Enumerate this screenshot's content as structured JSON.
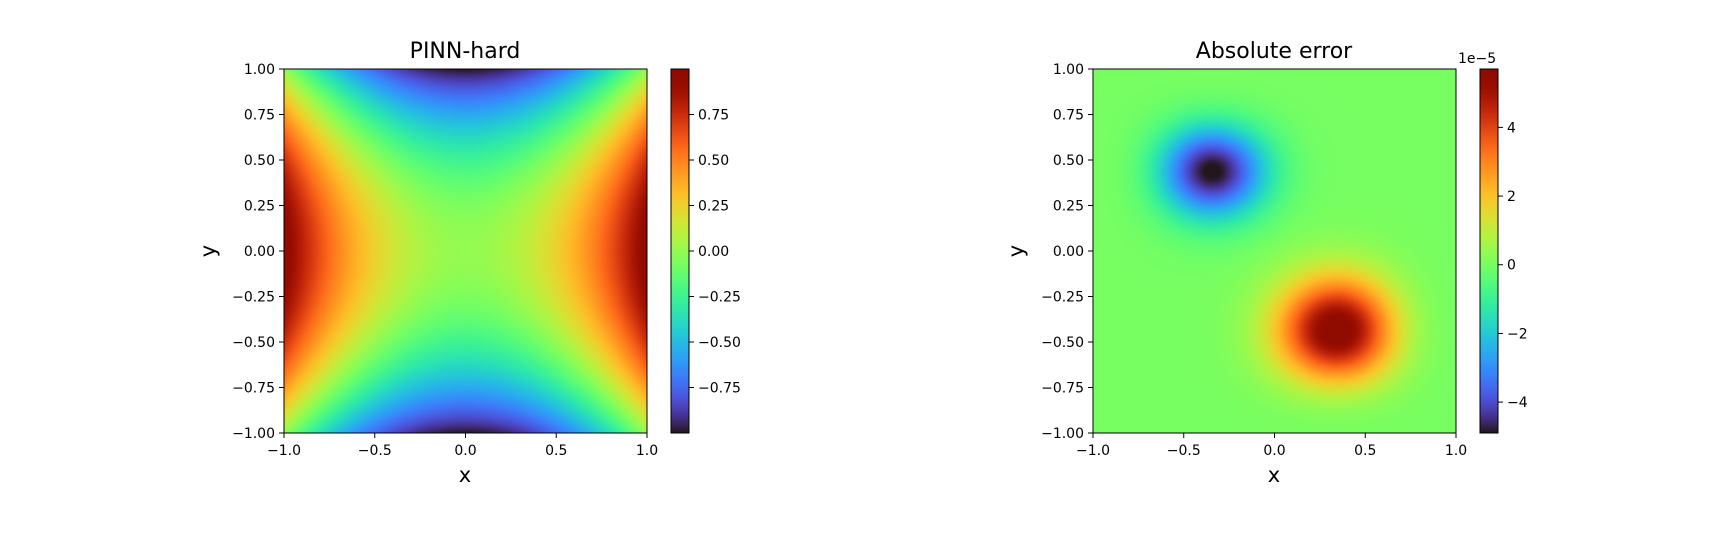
{
  "chart_data": [
    {
      "type": "heatmap",
      "title": "PINN-hard",
      "xlabel": "x",
      "ylabel": "y",
      "xlim": [
        -1.0,
        1.0
      ],
      "ylim": [
        -1.0,
        1.0
      ],
      "x_ticks": [
        "−1.0",
        "−0.5",
        "0.0",
        "0.5",
        "1.0"
      ],
      "x_tick_values": [
        -1.0,
        -0.5,
        0.0,
        0.5,
        1.0
      ],
      "y_ticks": [
        "1.00",
        "0.75",
        "0.50",
        "0.25",
        "0.00",
        "−0.25",
        "−0.50",
        "−0.75",
        "−1.00"
      ],
      "y_tick_values": [
        1.0,
        0.75,
        0.5,
        0.25,
        0.0,
        -0.25,
        -0.5,
        -0.75,
        -1.0
      ],
      "colormap": "turbo",
      "field": "x^2 - y^2",
      "colorbar": {
        "range": [
          -1.0,
          1.0
        ],
        "ticks": [
          "0.75",
          "0.50",
          "0.25",
          "0.00",
          "−0.25",
          "−0.50",
          "−0.75"
        ],
        "tick_values": [
          0.75,
          0.5,
          0.25,
          0.0,
          -0.25,
          -0.5,
          -0.75
        ],
        "offset_label": ""
      }
    },
    {
      "type": "heatmap",
      "title": "Absolute error",
      "xlabel": "x",
      "ylabel": "y",
      "xlim": [
        -1.0,
        1.0
      ],
      "ylim": [
        -1.0,
        1.0
      ],
      "x_ticks": [
        "−1.0",
        "−0.5",
        "0.0",
        "0.5",
        "1.0"
      ],
      "x_tick_values": [
        -1.0,
        -0.5,
        0.0,
        0.5,
        1.0
      ],
      "y_ticks": [
        "1.00",
        "0.75",
        "0.50",
        "0.25",
        "0.00",
        "−0.25",
        "−0.50",
        "−0.75",
        "−1.00"
      ],
      "y_tick_values": [
        1.0,
        0.75,
        0.5,
        0.25,
        0.0,
        -0.25,
        -0.5,
        -0.75,
        -1.0
      ],
      "colormap": "turbo",
      "field": "error lobes: min ≈ −4.9e−5 near (−0.35, 0.45), max ≈ 5.7e−5 near (0.35, −0.45)",
      "colorbar": {
        "range": [
          -4.9,
          5.7
        ],
        "ticks": [
          "4",
          "2",
          "0",
          "−2",
          "−4"
        ],
        "tick_values": [
          4,
          2,
          0,
          -2,
          -4
        ],
        "offset_label": "1e−5"
      }
    }
  ]
}
